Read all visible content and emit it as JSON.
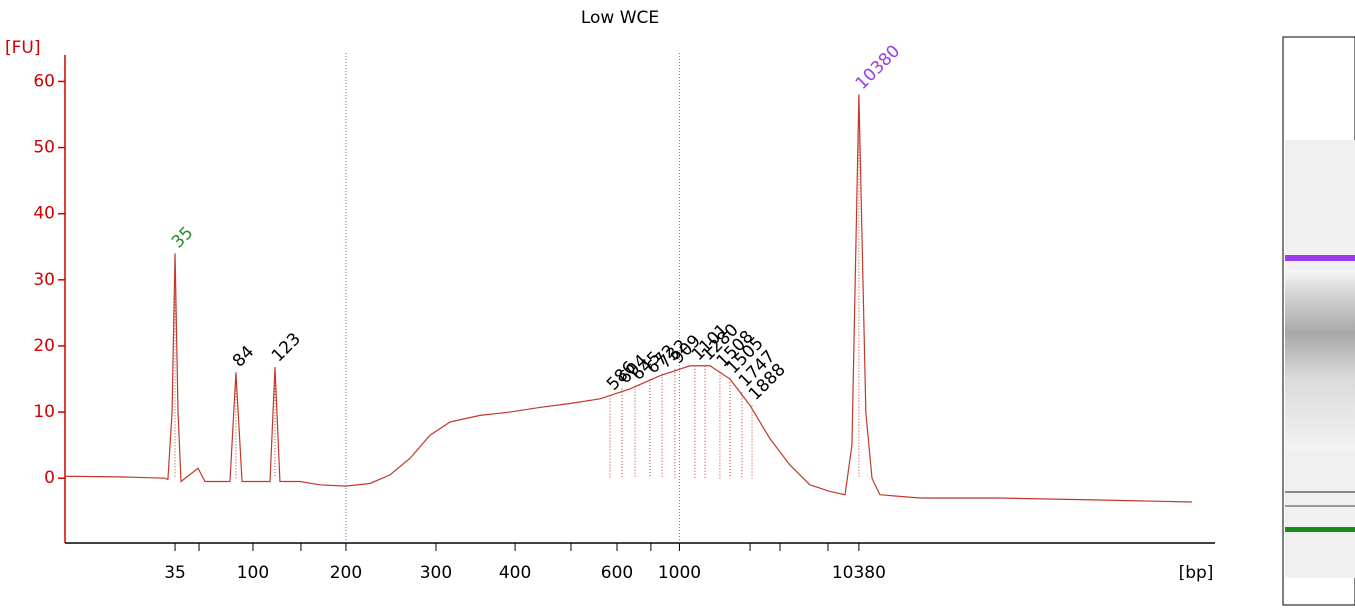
{
  "chart_data": {
    "type": "line",
    "title": "Low WCE",
    "y_label": "[FU]",
    "x_label": "[bp]",
    "ylim": [
      -9.8,
      64
    ],
    "yticks": [
      0,
      10,
      20,
      30,
      40,
      50,
      60
    ],
    "y_color": "#d40000",
    "xlim": [
      17,
      75
    ],
    "xticks": [
      {
        "value": 22.55,
        "label": "35"
      },
      {
        "value": 26.48,
        "label": "100"
      },
      {
        "value": 31.17,
        "label": "200"
      },
      {
        "value": 35.71,
        "label": "300"
      },
      {
        "value": 39.7,
        "label": "400"
      },
      {
        "value": 44.84,
        "label": "600"
      },
      {
        "value": 47.99,
        "label": "1000"
      },
      {
        "value": 57.04,
        "label": "10380"
      }
    ],
    "minor_xticks": [
      23.76,
      28.9,
      42.52,
      46.55,
      51.55,
      53.06,
      55.48
    ],
    "marker_lines": [
      31.17,
      47.99
    ],
    "x": [
      17.0,
      19.77,
      22.04,
      22.19,
      22.4,
      22.55,
      22.7,
      22.85,
      23.71,
      24.06,
      25.32,
      25.62,
      25.93,
      27.34,
      27.59,
      27.84,
      28.85,
      29.86,
      31.17,
      32.38,
      33.39,
      34.4,
      35.41,
      36.42,
      37.93,
      39.44,
      40.95,
      42.47,
      43.98,
      45.49,
      47.01,
      48.52,
      49.53,
      50.54,
      51.55,
      52.55,
      53.56,
      54.57,
      55.58,
      56.34,
      56.69,
      57.04,
      57.39,
      57.7,
      58.1,
      60.12,
      64.15,
      69.2,
      73.84
    ],
    "series": [
      {
        "name": "Low WCE",
        "color": "#c0392b",
        "values": [
          0.3,
          0.2,
          0,
          -0.2,
          10,
          34,
          10,
          -0.5,
          1.5,
          -0.5,
          -0.5,
          16,
          -0.5,
          -0.5,
          16.8,
          -0.5,
          -0.5,
          -1,
          -1.2,
          -0.8,
          0.5,
          3,
          6.5,
          8.5,
          9.5,
          10,
          10.7,
          11.3,
          12,
          13.5,
          15.5,
          17,
          17,
          15,
          11,
          6,
          2,
          -1,
          -2,
          -2.5,
          5,
          58,
          10,
          0,
          -2.5,
          -3,
          -3,
          -3.3,
          -3.6
        ]
      }
    ],
    "peaks": [
      {
        "label": "35",
        "x": 22.55,
        "y": 34,
        "color": "#2a8a2a"
      },
      {
        "label": "84",
        "x": 25.62,
        "y": 16
      },
      {
        "label": "123",
        "x": 27.59,
        "y": 16.8
      },
      {
        "label": "586",
        "x": 44.49,
        "y": 12.5
      },
      {
        "label": "604",
        "x": 45.09,
        "y": 13.5
      },
      {
        "label": "645",
        "x": 45.75,
        "y": 14
      },
      {
        "label": "672",
        "x": 46.5,
        "y": 15
      },
      {
        "label": "732",
        "x": 47.11,
        "y": 15.8
      },
      {
        "label": "909",
        "x": 47.76,
        "y": 16.5
      },
      {
        "label": "1101",
        "x": 48.77,
        "y": 17
      },
      {
        "label": "1280",
        "x": 49.28,
        "y": 17
      },
      {
        "label": "1508",
        "x": 50.03,
        "y": 16
      },
      {
        "label": "1505",
        "x": 50.54,
        "y": 15
      },
      {
        "label": "1747",
        "x": 51.14,
        "y": 13
      },
      {
        "label": "1888",
        "x": 51.65,
        "y": 11
      },
      {
        "label": "10380",
        "x": 57.04,
        "y": 58,
        "color": "#9a3cf0"
      }
    ]
  }
}
